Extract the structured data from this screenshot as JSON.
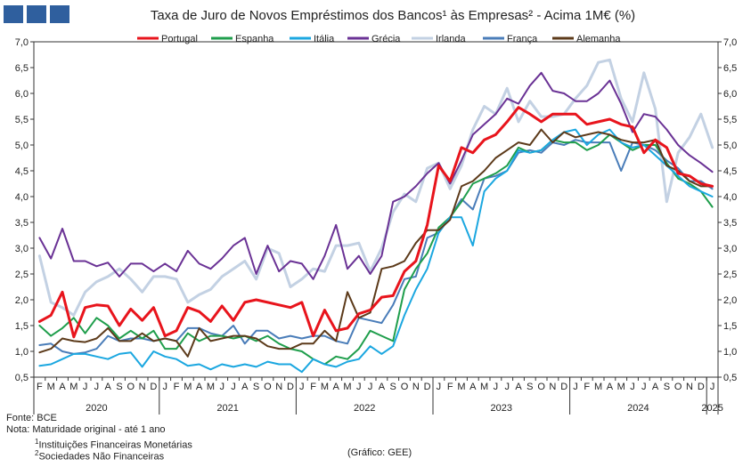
{
  "colors": {
    "logo": "#2f5f9e"
  },
  "chart_data": {
    "type": "line",
    "title": "Taxa de Juro de Novos Empréstimos dos Bancos¹ às Empresas² - Acima 1M€ (%)",
    "ylim": [
      0.5,
      7.0
    ],
    "yticks": [
      "7,0",
      "6,5",
      "6,0",
      "5,5",
      "5,0",
      "4,5",
      "4,0",
      "3,5",
      "3,0",
      "2,5",
      "2,0",
      "1,5",
      "1,0",
      "0,5"
    ],
    "grid": false,
    "legend": "top",
    "month_labels": [
      "F",
      "M",
      "A",
      "M",
      "J",
      "J",
      "A",
      "S",
      "O",
      "N",
      "D",
      "J",
      "F",
      "M",
      "A",
      "M",
      "J",
      "J",
      "A",
      "S",
      "O",
      "N",
      "D",
      "J",
      "F",
      "M",
      "A",
      "M",
      "J",
      "J",
      "A",
      "S",
      "O",
      "N",
      "D",
      "J",
      "F",
      "M",
      "A",
      "M",
      "J",
      "J",
      "A",
      "S",
      "O",
      "N",
      "D",
      "J",
      "F",
      "M",
      "A",
      "M",
      "J",
      "J",
      "A",
      "S",
      "O",
      "N",
      "D",
      "J"
    ],
    "x": [
      "2020-02",
      "2020-03",
      "2020-04",
      "2020-05",
      "2020-06",
      "2020-07",
      "2020-08",
      "2020-09",
      "2020-10",
      "2020-11",
      "2020-12",
      "2021-01",
      "2021-02",
      "2021-03",
      "2021-04",
      "2021-05",
      "2021-06",
      "2021-07",
      "2021-08",
      "2021-09",
      "2021-10",
      "2021-11",
      "2021-12",
      "2022-01",
      "2022-02",
      "2022-03",
      "2022-04",
      "2022-05",
      "2022-06",
      "2022-07",
      "2022-08",
      "2022-09",
      "2022-10",
      "2022-11",
      "2022-12",
      "2023-01",
      "2023-02",
      "2023-03",
      "2023-04",
      "2023-05",
      "2023-06",
      "2023-07",
      "2023-08",
      "2023-09",
      "2023-10",
      "2023-11",
      "2023-12",
      "2024-01",
      "2024-02",
      "2024-03",
      "2024-04",
      "2024-05",
      "2024-06",
      "2024-07",
      "2024-08",
      "2024-09",
      "2024-10",
      "2024-11",
      "2024-12",
      "2025-01"
    ],
    "years": [
      {
        "label": "2020",
        "start": 0,
        "end": 11
      },
      {
        "label": "2021",
        "start": 11,
        "end": 23
      },
      {
        "label": "2022",
        "start": 23,
        "end": 35
      },
      {
        "label": "2023",
        "start": 35,
        "end": 47
      },
      {
        "label": "2024",
        "start": 47,
        "end": 59
      },
      {
        "label": "2025",
        "start": 59,
        "end": 60
      }
    ],
    "series": [
      {
        "name": "Portugal",
        "color": "#e8141c",
        "width": 3,
        "values": [
          1.58,
          1.7,
          2.15,
          1.28,
          1.85,
          1.9,
          1.88,
          1.5,
          1.82,
          1.6,
          1.85,
          1.3,
          1.4,
          1.85,
          1.77,
          1.58,
          1.88,
          1.6,
          1.95,
          2.0,
          1.95,
          1.9,
          1.85,
          1.95,
          1.3,
          1.8,
          1.4,
          1.45,
          1.73,
          1.8,
          2.05,
          2.08,
          2.55,
          2.75,
          3.45,
          4.6,
          4.3,
          4.95,
          4.85,
          5.1,
          5.2,
          5.45,
          5.73,
          5.6,
          5.45,
          5.6,
          5.6,
          5.6,
          5.4,
          5.45,
          5.5,
          5.4,
          5.35,
          4.85,
          5.1,
          4.95,
          4.45,
          4.4,
          4.25,
          4.2
        ]
      },
      {
        "name": "Espanha",
        "color": "#1f9e4c",
        "width": 2,
        "values": [
          1.5,
          1.3,
          1.45,
          1.65,
          1.35,
          1.65,
          1.5,
          1.25,
          1.4,
          1.25,
          1.4,
          1.05,
          1.05,
          1.35,
          1.2,
          1.3,
          1.3,
          1.25,
          1.3,
          1.2,
          1.3,
          1.15,
          1.05,
          1.0,
          0.85,
          0.75,
          0.9,
          0.85,
          1.05,
          1.4,
          1.3,
          1.2,
          2.2,
          2.6,
          2.9,
          3.4,
          3.6,
          3.9,
          4.25,
          4.35,
          4.45,
          4.6,
          4.95,
          4.85,
          4.9,
          5.1,
          5.05,
          5.05,
          4.9,
          5.0,
          5.2,
          5.05,
          4.9,
          5.0,
          5.0,
          4.65,
          4.35,
          4.25,
          4.1,
          3.8
        ]
      },
      {
        "name": "Itália",
        "color": "#1ba7e0",
        "width": 2,
        "values": [
          0.72,
          0.75,
          0.85,
          0.95,
          0.95,
          0.9,
          0.85,
          0.95,
          0.98,
          0.7,
          1.0,
          0.9,
          0.85,
          0.72,
          0.75,
          0.65,
          0.75,
          0.7,
          0.75,
          0.7,
          0.8,
          0.75,
          0.75,
          0.6,
          0.85,
          0.75,
          0.7,
          0.8,
          0.85,
          1.1,
          0.95,
          1.1,
          1.7,
          2.2,
          2.6,
          3.3,
          3.6,
          3.6,
          3.05,
          4.1,
          4.35,
          4.5,
          4.9,
          4.85,
          4.9,
          5.1,
          5.25,
          5.3,
          5.0,
          5.2,
          5.3,
          5.05,
          4.95,
          5.0,
          4.8,
          4.6,
          4.4,
          4.2,
          4.1,
          4.0
        ]
      },
      {
        "name": "Grécia",
        "color": "#6a3295",
        "width": 2,
        "values": [
          3.2,
          2.8,
          3.38,
          2.75,
          2.75,
          2.65,
          2.72,
          2.45,
          2.7,
          2.7,
          2.55,
          2.7,
          2.55,
          2.95,
          2.7,
          2.6,
          2.8,
          3.05,
          3.2,
          2.5,
          3.05,
          2.55,
          2.75,
          2.7,
          2.4,
          2.85,
          3.45,
          2.6,
          2.85,
          2.5,
          2.85,
          3.9,
          4.0,
          4.2,
          4.45,
          4.65,
          4.25,
          4.7,
          5.2,
          5.4,
          5.6,
          5.9,
          5.8,
          6.15,
          6.4,
          6.05,
          6.0,
          5.85,
          5.85,
          6.0,
          6.25,
          5.8,
          5.25,
          5.6,
          5.55,
          5.3,
          5.0,
          4.8,
          4.65,
          4.48
        ]
      },
      {
        "name": "Irlanda",
        "color": "#c3d1e3",
        "width": 3,
        "values": [
          2.85,
          1.95,
          1.85,
          1.7,
          2.15,
          2.35,
          2.45,
          2.6,
          2.4,
          2.15,
          2.45,
          2.45,
          2.4,
          1.95,
          2.1,
          2.2,
          2.45,
          2.6,
          2.75,
          2.4,
          3.0,
          2.9,
          2.25,
          2.4,
          2.6,
          2.55,
          3.05,
          3.05,
          3.1,
          2.55,
          3.0,
          3.7,
          4.05,
          3.9,
          4.55,
          4.65,
          4.15,
          4.6,
          5.3,
          5.75,
          5.6,
          6.1,
          5.45,
          5.85,
          5.55,
          5.55,
          5.6,
          5.9,
          6.15,
          6.6,
          6.65,
          5.9,
          5.45,
          6.4,
          5.7,
          3.9,
          4.85,
          5.15,
          5.6,
          4.95
        ]
      },
      {
        "name": "França",
        "color": "#4a7db9",
        "width": 2,
        "values": [
          1.12,
          1.15,
          1.0,
          0.95,
          0.98,
          1.05,
          1.3,
          1.2,
          1.25,
          1.25,
          1.2,
          1.25,
          1.2,
          1.45,
          1.45,
          1.35,
          1.3,
          1.5,
          1.15,
          1.4,
          1.4,
          1.25,
          1.3,
          1.25,
          1.3,
          1.3,
          1.2,
          1.15,
          1.65,
          1.6,
          1.55,
          1.9,
          2.4,
          2.45,
          3.2,
          3.3,
          3.6,
          3.95,
          3.75,
          4.35,
          4.4,
          4.5,
          4.85,
          4.9,
          4.85,
          5.05,
          5.0,
          5.1,
          5.05,
          5.05,
          5.05,
          4.5,
          5.05,
          5.0,
          4.9,
          4.7,
          4.55,
          4.3,
          4.3,
          4.15
        ]
      },
      {
        "name": "Alemanha",
        "color": "#5c3a1a",
        "width": 2,
        "values": [
          0.98,
          1.05,
          1.25,
          1.2,
          1.18,
          1.25,
          1.45,
          1.2,
          1.2,
          1.35,
          1.2,
          1.25,
          1.2,
          0.9,
          1.45,
          1.2,
          1.25,
          1.3,
          1.3,
          1.25,
          1.1,
          1.05,
          1.05,
          1.15,
          1.15,
          1.4,
          1.2,
          2.15,
          1.65,
          1.75,
          2.6,
          2.65,
          2.75,
          3.1,
          3.35,
          3.35,
          3.55,
          4.2,
          4.3,
          4.5,
          4.75,
          4.9,
          5.05,
          5.0,
          5.3,
          5.05,
          5.25,
          5.15,
          5.2,
          5.25,
          5.2,
          5.1,
          5.05,
          5.05,
          5.1,
          4.6,
          4.5,
          4.3,
          4.2,
          4.2
        ]
      }
    ]
  },
  "footnotes": {
    "source": "Fonte: BCE",
    "note": "Nota: Maturidade original - até 1 ano",
    "note1": "Instituições Financeiras Monetárias",
    "note2": "Sociedades Não Financeiras",
    "sup1": "1",
    "sup2": "2",
    "credit": "(Gráfico: GEE)"
  }
}
